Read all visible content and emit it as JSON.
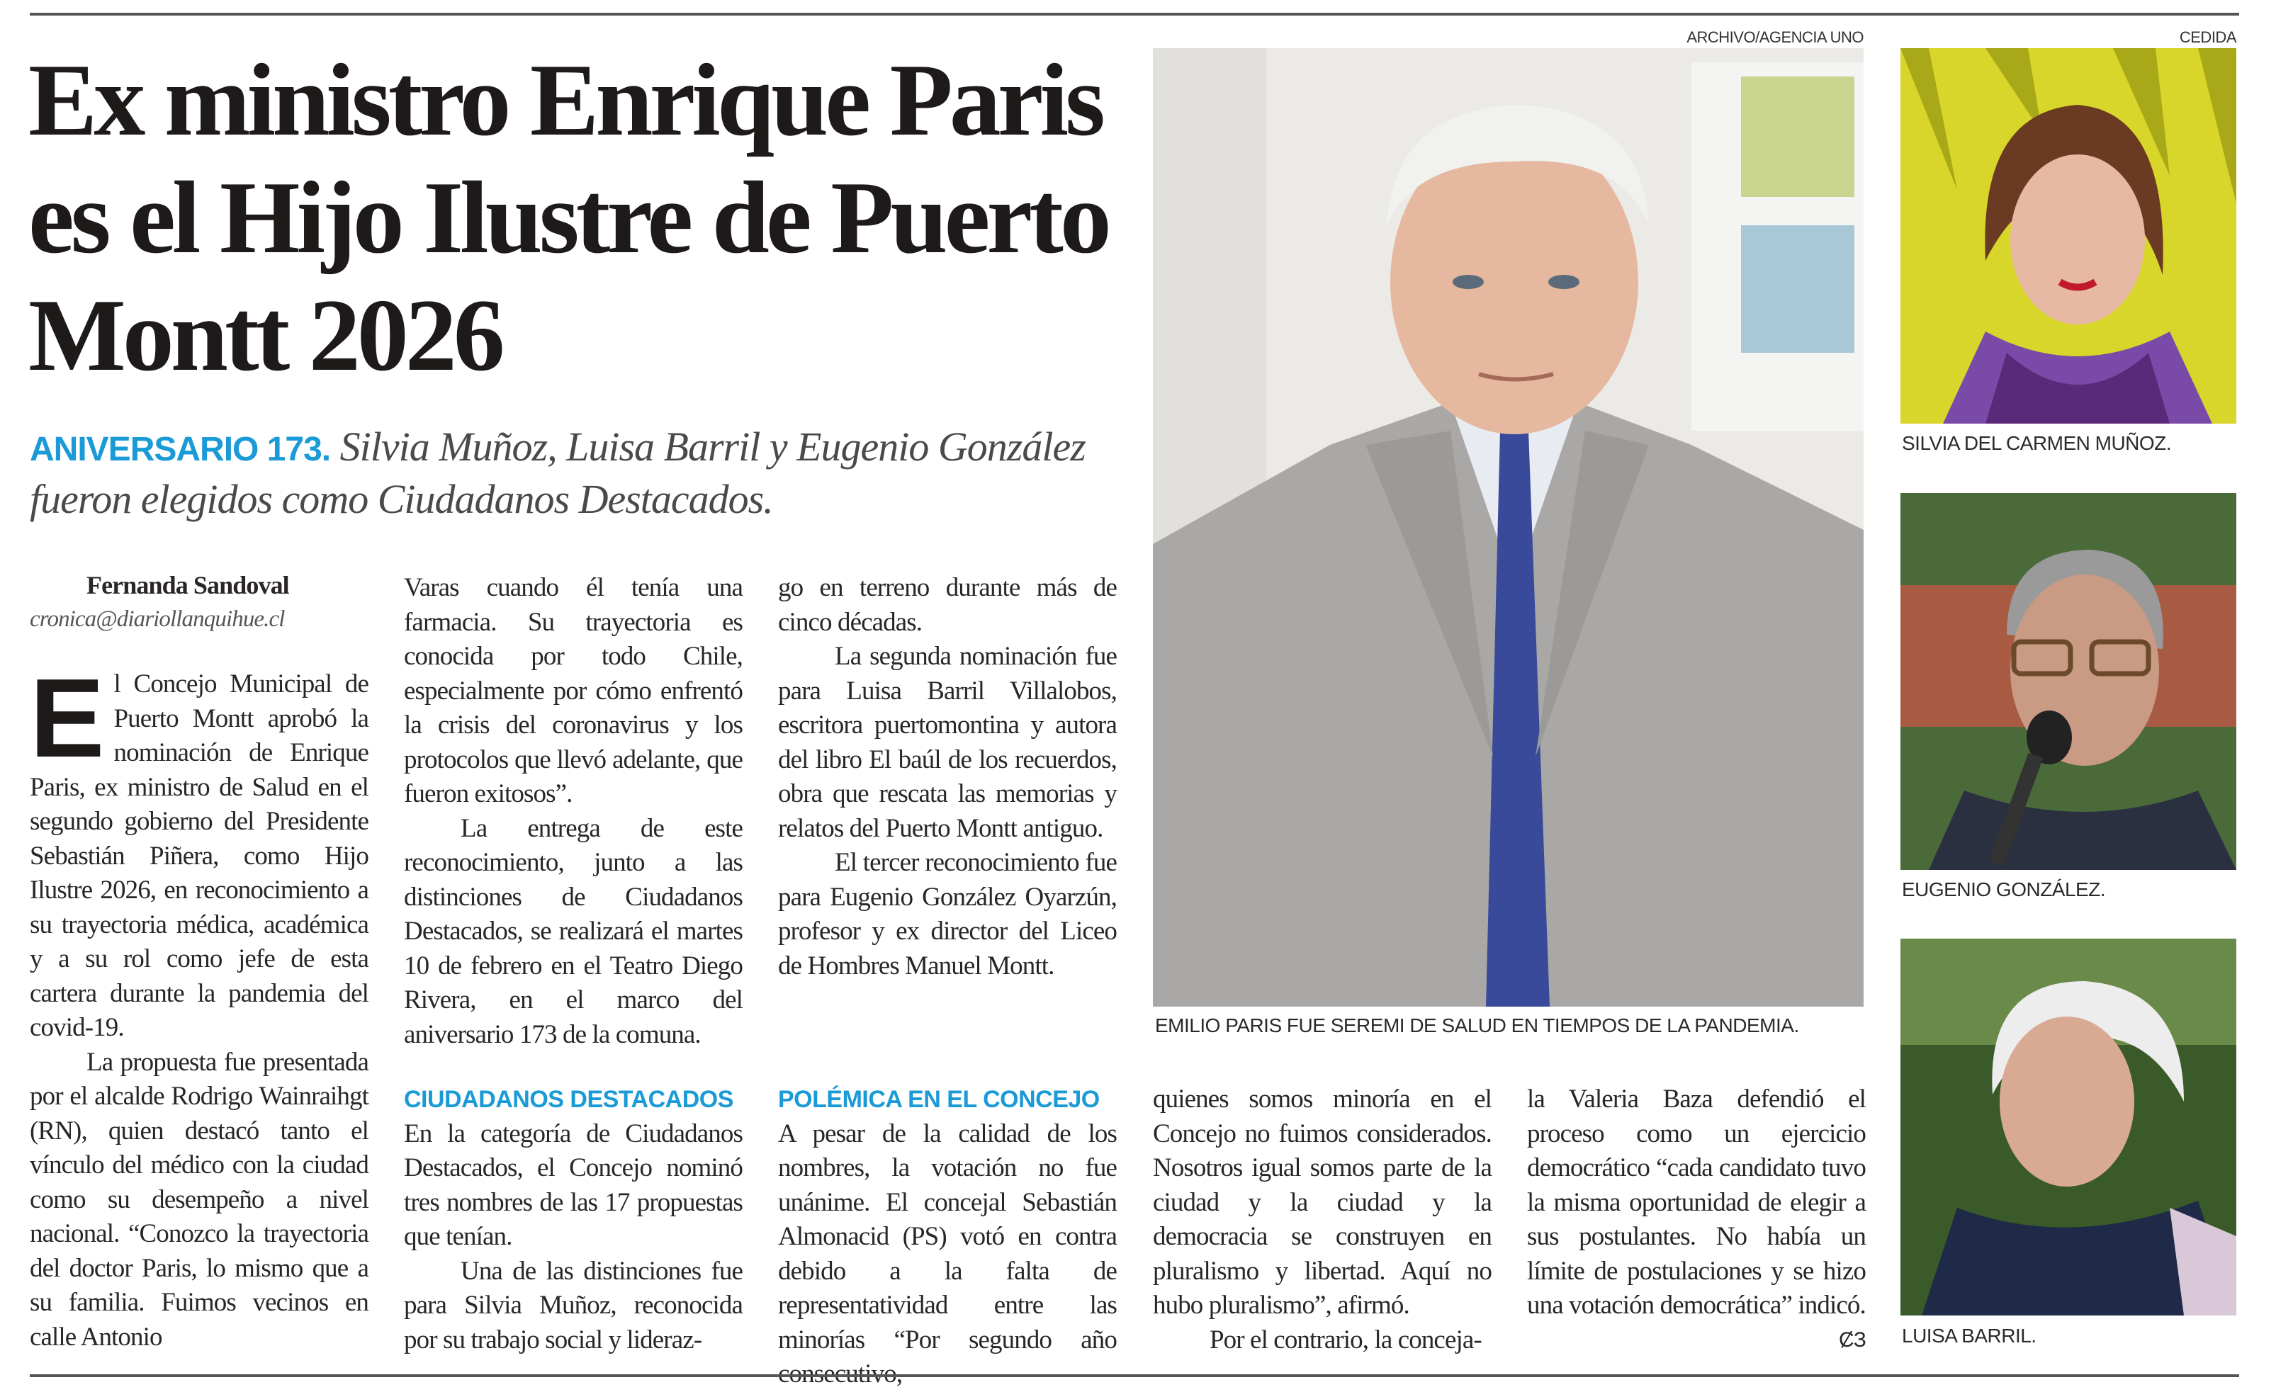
{
  "headline": "Ex ministro Enrique Paris es el Hijo Ilustre de Puerto Montt 2026",
  "subhead": {
    "kicker": "ANIVERSARIO 173.",
    "text": "Silvia Muñoz, Luisa Barril y Eugenio González fueron elegidos como Ciudadanos Destacados."
  },
  "byline": {
    "author": "Fernanda Sandoval",
    "email": "cronica@diariollanquihue.cl"
  },
  "columns": {
    "c1": {
      "dropcap": "E",
      "p1": "l Concejo Municipal de Puerto Montt aprobó la nominación de Enrique Paris, ex ministro de Salud en el segundo gobierno del Presidente Sebastián Piñera, como Hijo Ilustre 2026, en reconocimiento a su trayectoria médica, académica y a su rol como jefe de esta cartera durante la pandemia del covid-19.",
      "p2": "La propuesta fue presentada por el alcalde Rodrigo Wainraihgt (RN), quien destacó tanto el vínculo del médico con la ciudad como su desempeño a nivel nacional. “Conozco la trayectoria del doctor Paris, lo mismo que a su familia. Fuimos vecinos en calle Antonio"
    },
    "c2_top": {
      "p1": "Varas cuando él tenía una farmacia. Su trayectoria es conocida por todo Chile, especialmente por cómo enfrentó la crisis del coronavirus y los protocolos que llevó adelante, que fueron exitosos”.",
      "p2": "La entrega de este reconocimiento, junto a las distinciones de Ciudadanos Destacados, se realizará el martes 10 de febrero en el Teatro Diego Rivera, en el marco del aniversario 173 de la comuna."
    },
    "c2_bottom": {
      "heading": "CIUDADANOS DESTACADOS",
      "p1": "En la categoría de Ciudadanos Destacados, el Concejo nominó tres nombres de las 17 propuestas que tenían.",
      "p2": "Una de las distinciones fue para Silvia Muñoz, reconocida por su trabajo social y lideraz-"
    },
    "c3_top": {
      "p1": "go en terreno durante más de cinco décadas.",
      "p2": "La segunda nominación fue para Luisa Barril Villalobos, escritora puertomontina y autora del libro El baúl de los recuerdos, obra que rescata las memorias y relatos del Puerto Montt antiguo.",
      "p3": "El tercer reconocimiento fue para Eugenio González Oyarzún, profesor y ex director del Liceo de Hombres Manuel Montt."
    },
    "c3_bottom": {
      "heading": "POLÉMICA EN EL CONCEJO",
      "p1": "A pesar de la calidad de los nombres, la votación no fue unánime. El concejal Sebastián Almonacid (PS) votó en contra debido a la falta de representatividad entre las minorías “Por segundo año consecutivo,"
    },
    "c4": {
      "p1": "quienes somos minoría en el Concejo no fuimos considerados. Nosotros igual somos parte de la ciudad y la ciudad y la democracia se construyen en pluralismo y libertad. Aquí no hubo pluralismo”, afirmó.",
      "p2": "Por el contrario, la conceja-"
    },
    "c5": {
      "p1": "la Valeria Baza defendió el proceso como un ejercicio democrático “cada candidato tuvo la misma oportunidad de elegir a sus postulantes. No había un límite de postulaciones y se hizo una votación democrática” indicó."
    }
  },
  "main_photo": {
    "credit": "ARCHIVO/AGENCIA UNO",
    "caption": "EMILIO PARIS FUE SEREMI DE SALUD EN TIEMPOS DE LA PANDEMIA."
  },
  "side_photos": {
    "credit": "CEDIDA",
    "items": [
      {
        "caption": "SILVIA DEL CARMEN MUÑOZ."
      },
      {
        "caption": "EUGENIO GONZÁLEZ."
      },
      {
        "caption": "LUISA BARRIL."
      }
    ]
  },
  "colors": {
    "accent": "#1a9ad6",
    "text": "#231f20"
  }
}
